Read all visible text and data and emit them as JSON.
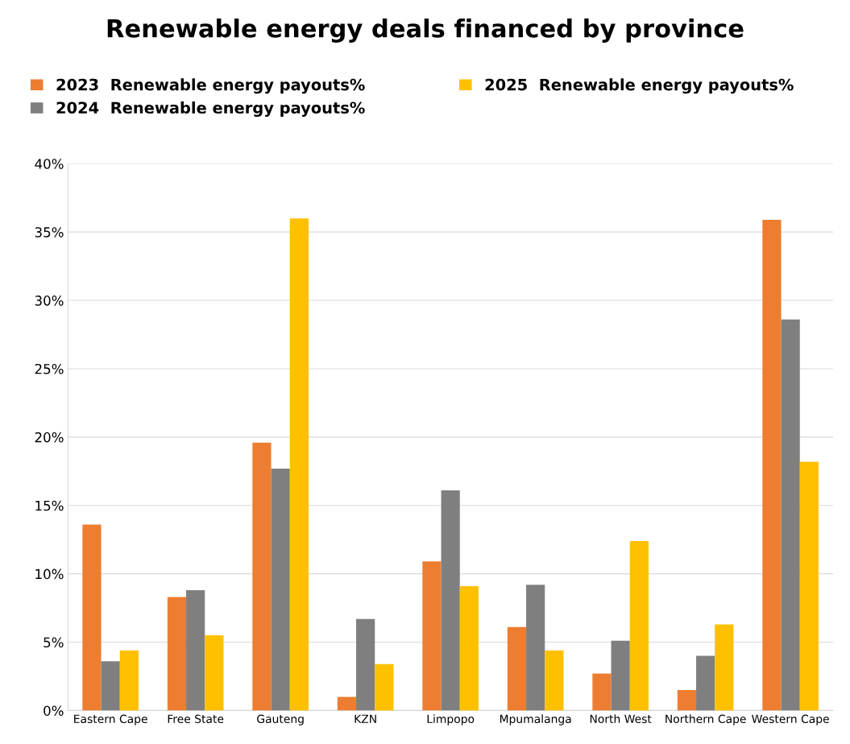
{
  "chart_data": {
    "type": "bar",
    "title": "Renewable energy deals financed by province",
    "categories": [
      "Eastern Cape",
      "Free State",
      "Gauteng",
      "KZN",
      "Limpopo",
      "Mpumalanga",
      "North West",
      "Northern Cape",
      "Western Cape"
    ],
    "series": [
      {
        "name": "2023  Renewable energy payouts%",
        "color": "#ed7d31",
        "values": [
          13.6,
          8.3,
          19.6,
          1.0,
          10.9,
          6.1,
          2.7,
          1.5,
          35.9
        ]
      },
      {
        "name": "2024  Renewable energy payouts%",
        "color": "#7f7f7f",
        "values": [
          3.6,
          8.8,
          17.7,
          6.7,
          16.1,
          9.2,
          5.1,
          4.0,
          28.6
        ]
      },
      {
        "name": "2025  Renewable energy payouts%",
        "color": "#ffc000",
        "values": [
          4.4,
          5.5,
          36.0,
          3.4,
          9.1,
          4.4,
          12.4,
          6.3,
          18.2
        ]
      }
    ],
    "ylim": [
      0,
      40
    ],
    "yticks": [
      {
        "value": 0,
        "label": "0%"
      },
      {
        "value": 5,
        "label": "5%"
      },
      {
        "value": 10,
        "label": "10%"
      },
      {
        "value": 15,
        "label": "15%"
      },
      {
        "value": 20,
        "label": "20%"
      },
      {
        "value": 25,
        "label": "25%"
      },
      {
        "value": 30,
        "label": "30%"
      },
      {
        "value": 35,
        "label": "35%"
      },
      {
        "value": 40,
        "label": "40%"
      }
    ],
    "grid": "y",
    "legend": "top"
  }
}
